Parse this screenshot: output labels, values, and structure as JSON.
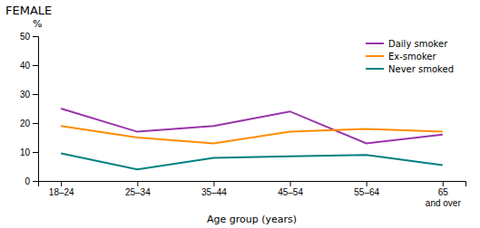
{
  "chart_data": {
    "type": "line",
    "title": "FEMALE",
    "ylabel": "%",
    "xlabel": "Age group (years)",
    "categories": [
      "18–24",
      "25–34",
      "35–44",
      "45–54",
      "55–64",
      "65\nand over"
    ],
    "series": [
      {
        "name": "Daily smoker",
        "color": "#9933AA",
        "values": [
          25,
          17,
          19,
          24,
          13,
          16
        ]
      },
      {
        "name": "Ex-smoker",
        "color": "#FF8C00",
        "values": [
          19,
          15,
          13,
          17,
          18,
          17
        ]
      },
      {
        "name": "Never smoked",
        "color": "#008080",
        "values": [
          9.5,
          4,
          8,
          8.5,
          9,
          5.5
        ]
      }
    ],
    "ylim": [
      0,
      50
    ],
    "yticks": [
      0,
      10,
      20,
      30,
      40,
      50
    ],
    "grid": false,
    "legend": "upper right"
  }
}
